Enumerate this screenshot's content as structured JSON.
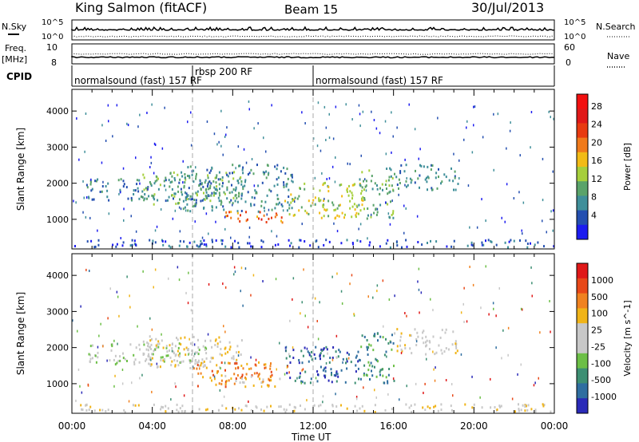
{
  "header": {
    "station": "King Salmon (fitACF)",
    "beam": "Beam 15",
    "date": "30/Jul/2013"
  },
  "summary": {
    "nsky_label": "N.Sky",
    "nsearch_label": "N.Search",
    "freq_label": "Freq.",
    "freq_unit": "[MHz]",
    "nave_label": "Nave",
    "cpid_label": "CPID",
    "left_ticks_top": [
      "10^5",
      "10^0"
    ],
    "right_ticks_top": [
      "10^5",
      "10^0"
    ],
    "left_ticks_freq": [
      "10",
      "8"
    ],
    "right_ticks_nave": [
      "60",
      "0"
    ]
  },
  "cpid": {
    "segments": [
      {
        "name": "normalsound (fast) 157 RF",
        "start_hr": 0,
        "end_hr": 6
      },
      {
        "name": "rbsp 200 RF",
        "start_hr": 6,
        "end_hr": 12
      },
      {
        "name": "normalsound (fast) 157 RF",
        "start_hr": 12,
        "end_hr": 24
      }
    ]
  },
  "chart_data": [
    {
      "type": "heatmap",
      "title": "Power",
      "xlabel": "Time UT",
      "ylabel": "Slant Range [km]",
      "xlim": [
        0,
        24
      ],
      "ylim": [
        180,
        4600
      ],
      "x_ticks": [
        "00:00",
        "04:00",
        "08:00",
        "12:00",
        "16:00",
        "20:00",
        "00:00"
      ],
      "y_ticks": [
        1000,
        2000,
        3000,
        4000
      ],
      "colorbar": {
        "label": "Power [dB]",
        "ticks": [
          "4",
          "8",
          "12",
          "16",
          "20",
          "24",
          "28"
        ],
        "colors": [
          "#1c1cf0",
          "#244fb0",
          "#3f8f9a",
          "#5aa36a",
          "#a6cf3c",
          "#f2bb16",
          "#f07a1b",
          "#e83a10",
          "#e01818",
          "#f21010"
        ]
      },
      "regions": [
        {
          "t0": 0.7,
          "t1": 7.0,
          "r0": 1500,
          "r1": 2100,
          "level": 2
        },
        {
          "t0": 3.5,
          "t1": 8.5,
          "r0": 1400,
          "r1": 2300,
          "level": 3
        },
        {
          "t0": 5.5,
          "t1": 11.0,
          "r0": 1200,
          "r1": 2500,
          "level": 2
        },
        {
          "t0": 7.5,
          "t1": 10.5,
          "r0": 900,
          "r1": 1200,
          "level": 6
        },
        {
          "t0": 8.3,
          "t1": 9.8,
          "r0": 900,
          "r1": 1000,
          "level": 8
        },
        {
          "t0": 10.5,
          "t1": 14.5,
          "r0": 1000,
          "r1": 2000,
          "level": 4
        },
        {
          "t0": 14.2,
          "t1": 16.0,
          "r0": 1000,
          "r1": 2400,
          "level": 3
        },
        {
          "t0": 16.0,
          "t1": 19.2,
          "r0": 1800,
          "r1": 2500,
          "level": 2
        },
        {
          "t0": 0,
          "t1": 24,
          "r0": 200,
          "r1": 420,
          "level": 1
        }
      ]
    },
    {
      "type": "heatmap",
      "title": "Velocity",
      "xlabel": "Time UT",
      "ylabel": "Slant Range [km]",
      "xlim": [
        0,
        24
      ],
      "ylim": [
        180,
        4600
      ],
      "x_ticks": [
        "00:00",
        "04:00",
        "08:00",
        "12:00",
        "16:00",
        "20:00",
        "00:00"
      ],
      "y_ticks": [
        1000,
        2000,
        3000,
        4000
      ],
      "colorbar": {
        "label": "Velocity [m s^-1]",
        "ticks": [
          "1000",
          "500",
          "100",
          "25",
          "-25",
          "-100",
          "-500",
          "-1000"
        ],
        "colors": [
          "#2a2ab8",
          "#2f6ea0",
          "#3d8f73",
          "#6cbf46",
          "#c8c8c8",
          "#c8c8c8",
          "#f0b418",
          "#f08220",
          "#e84818",
          "#e01818"
        ]
      },
      "regions": [
        {
          "t0": 0.7,
          "t1": 7.0,
          "r0": 1500,
          "r1": 2100,
          "level": 4
        },
        {
          "t0": 3.5,
          "t1": 8.5,
          "r0": 1400,
          "r1": 2300,
          "level": 5
        },
        {
          "t0": 6.0,
          "t1": 10.0,
          "r0": 900,
          "r1": 1600,
          "level": 7
        },
        {
          "t0": 7.5,
          "t1": 10.5,
          "r0": 900,
          "r1": 1200,
          "level": 6
        },
        {
          "t0": 10.5,
          "t1": 14.5,
          "r0": 1000,
          "r1": 2000,
          "level": 1
        },
        {
          "t0": 14.2,
          "t1": 16.0,
          "r0": 1000,
          "r1": 2400,
          "level": 2
        },
        {
          "t0": 16.0,
          "t1": 19.2,
          "r0": 1800,
          "r1": 2500,
          "level": 5
        },
        {
          "t0": 0,
          "t1": 24,
          "r0": 200,
          "r1": 420,
          "level": 5
        }
      ]
    }
  ]
}
